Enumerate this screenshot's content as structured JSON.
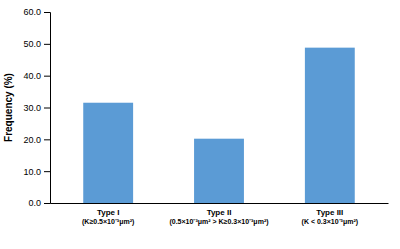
{
  "chart_data": {
    "type": "bar",
    "ylabel": "Frequency (%)",
    "categories": [
      "Type I\n(K≥0.5×10⁻³μm²)",
      "Type II\n(0.5×10⁻³μm² > K≥0.3×10⁻³μm²)",
      "Type III\n(K < 0.3×10⁻³μm²)"
    ],
    "values": [
      31.5,
      20.2,
      48.8
    ],
    "color": "#5b9bd5",
    "ylim": [
      0,
      60
    ],
    "yticks": [
      {
        "value": 0.0,
        "label": "0.0"
      },
      {
        "value": 10.0,
        "label": "10.0"
      },
      {
        "value": 20.0,
        "label": "20.0"
      },
      {
        "value": 30.0,
        "label": "30.0"
      },
      {
        "value": 40.0,
        "label": "40.0"
      },
      {
        "value": 50.0,
        "label": "50.0"
      },
      {
        "value": 60.0,
        "label": "60.0"
      }
    ],
    "grid": false
  }
}
